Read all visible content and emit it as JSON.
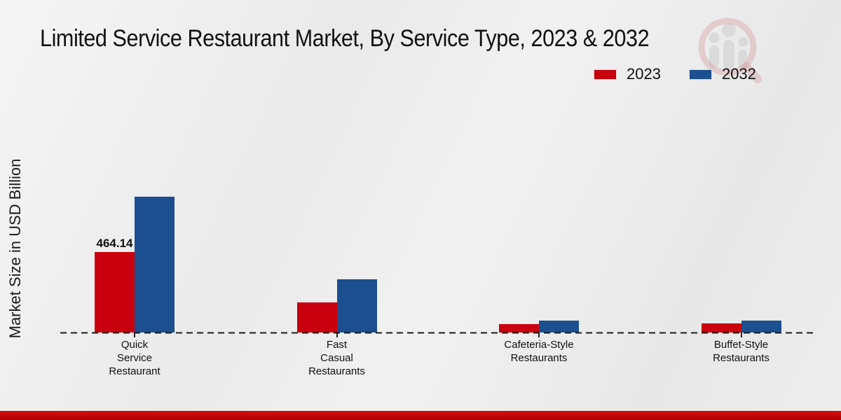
{
  "title": "Limited Service Restaurant Market, By Service Type, 2023 & 2032",
  "ylabel": "Market Size in USD Billion",
  "legend": [
    {
      "label": "2023",
      "color": "#c9000e"
    },
    {
      "label": "2032",
      "color": "#1b4f8f"
    }
  ],
  "colors": {
    "series_2023": "#c9000e",
    "series_2032": "#1b4f8f",
    "baseline": "#1a1a1a",
    "bottom_strip": "#c00808",
    "background": "#ececec"
  },
  "chart_data": {
    "type": "bar",
    "categories": [
      "Quick Service Restaurant",
      "Fast Casual Restaurants",
      "Cafeteria-Style Restaurants",
      "Buffet-Style Restaurants"
    ],
    "category_lines": [
      [
        "Quick",
        "Service",
        "Restaurant"
      ],
      [
        "Fast",
        "Casual",
        "Restaurants"
      ],
      [
        "Cafeteria-Style",
        "Restaurants"
      ],
      [
        "Buffet-Style",
        "Restaurants"
      ]
    ],
    "series": [
      {
        "name": "2023",
        "color": "#c9000e",
        "values": [
          464.14,
          175,
          50,
          52
        ]
      },
      {
        "name": "2032",
        "color": "#1b4f8f",
        "values": [
          783,
          307,
          67,
          69
        ]
      }
    ],
    "value_labels": [
      {
        "series": "2023",
        "category": "Quick Service Restaurant",
        "text": "464.14"
      }
    ],
    "title": "Limited Service Restaurant Market, By Service Type, 2023 & 2032",
    "xlabel": "",
    "ylabel": "Market Size in USD Billion",
    "ylim": [
      0,
      800
    ],
    "grid": false,
    "legend_position": "top-right",
    "baseline_style": "dashed"
  },
  "watermark": {
    "icon": "magnifier-bar-chart-logo"
  }
}
